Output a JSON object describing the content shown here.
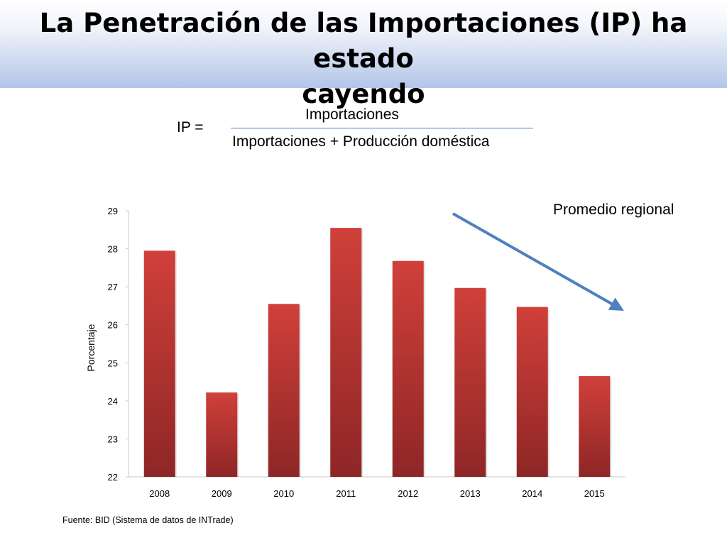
{
  "slide": {
    "title_line1": "La Penetración de las Importaciones (IP) ha estado",
    "title_line2": "cayendo",
    "formula": {
      "label": "IP =",
      "numerator": "Importaciones",
      "denominator": "Importaciones + Producción doméstica"
    },
    "annotation": "Promedio regional",
    "source": "Fuente: BID (Sistema de datos de INTrade)"
  },
  "colors": {
    "bar_top": "#d0403a",
    "bar_bottom": "#8e2626",
    "arrow": "#4f81bd",
    "header_gradient_end": "#b3c5e8"
  },
  "chart_data": {
    "type": "bar",
    "categories": [
      "2008",
      "2009",
      "2010",
      "2011",
      "2012",
      "2013",
      "2014",
      "2015"
    ],
    "values": [
      27.95,
      24.22,
      26.55,
      28.55,
      27.68,
      26.97,
      26.47,
      24.65
    ],
    "ylabel": "Porcentaje",
    "ylim": [
      22,
      29
    ],
    "yticks": [
      "22",
      "23",
      "24",
      "25",
      "26",
      "27",
      "28",
      "29"
    ],
    "grid": false,
    "trend_arrow": "downward, top-right of plot"
  }
}
